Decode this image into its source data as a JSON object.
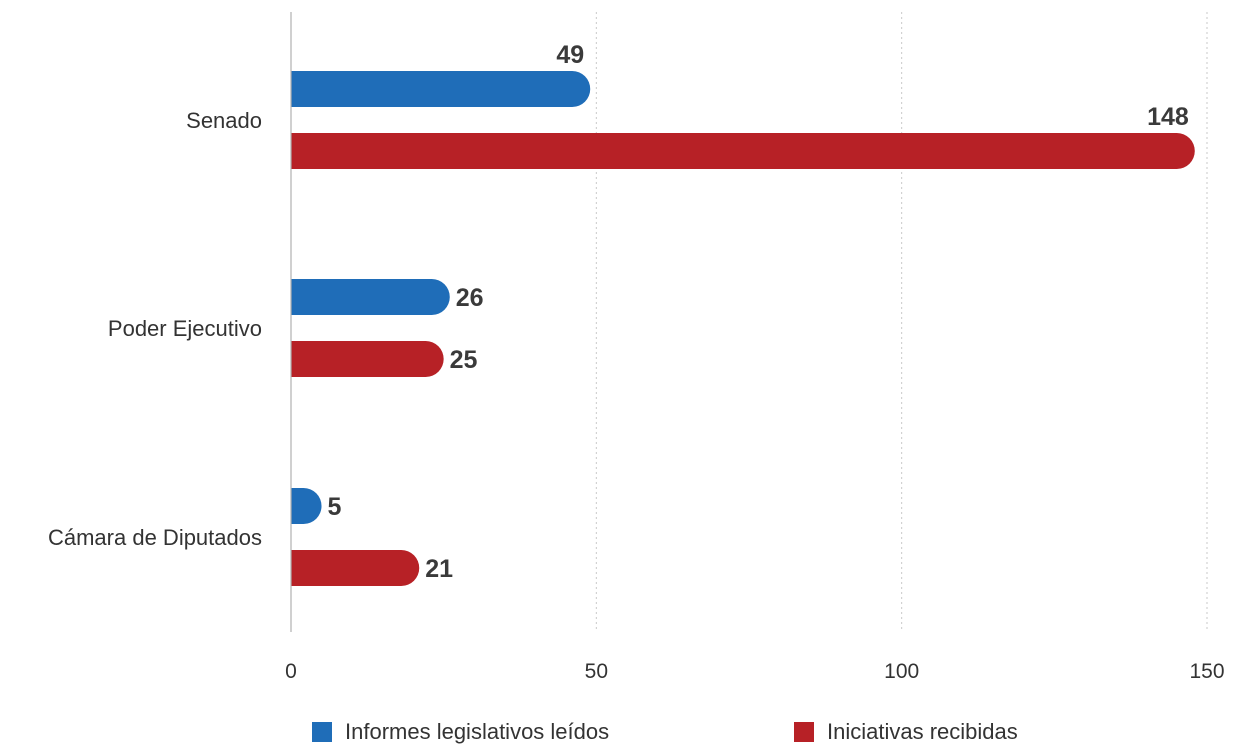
{
  "chart_data": {
    "type": "bar",
    "orientation": "horizontal",
    "categories": [
      "Senado",
      "Poder Ejecutivo",
      "Cámara de Diputados"
    ],
    "series": [
      {
        "name": "Informes legislativos leídos",
        "color": "#1f6db8",
        "values": [
          49,
          26,
          5
        ]
      },
      {
        "name": "Iniciativas recibidas",
        "color": "#b72126",
        "values": [
          148,
          25,
          21
        ]
      }
    ],
    "x_ticks": [
      0,
      50,
      100,
      150
    ],
    "xlim": [
      0,
      150
    ],
    "grid": true,
    "legend_position": "bottom",
    "data_labels": true
  }
}
